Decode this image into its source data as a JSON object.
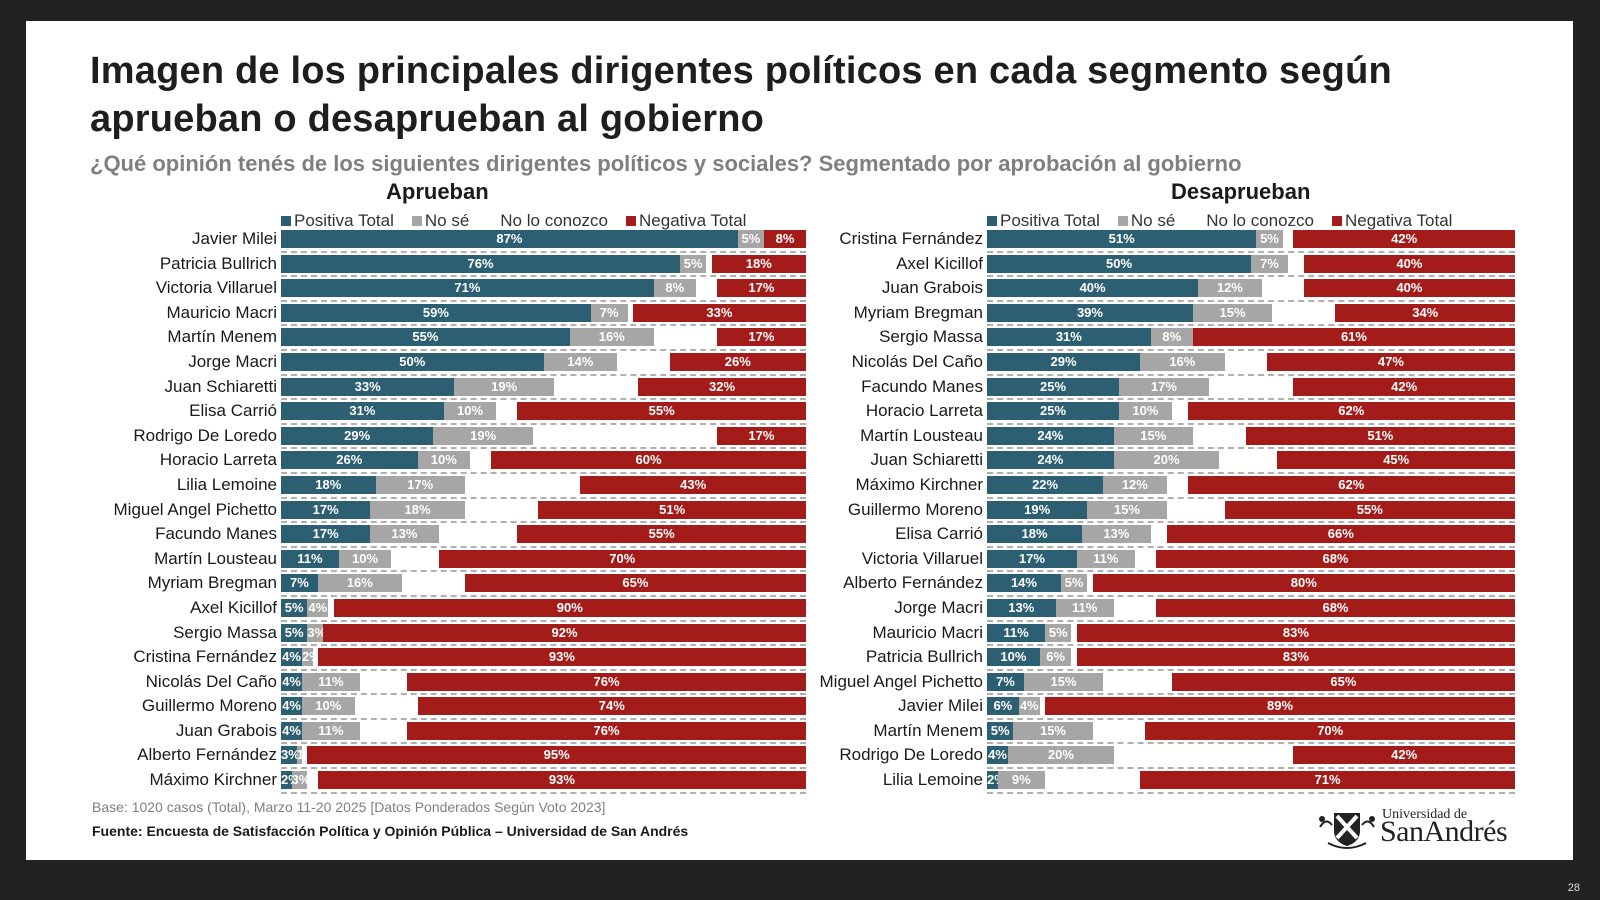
{
  "title": "Imagen de los principales dirigentes políticos en cada segmento según aprueban o desaprueban al gobierno",
  "subtitle": "¿Qué opinión tenés de los siguientes dirigentes políticos y sociales? Segmentado por aprobación al gobierno",
  "colors": {
    "positiva": "#2d5f73",
    "no_se": "#a6a6a6",
    "no_lo_conozco": "#ffffff",
    "negativa": "#a31c1a"
  },
  "legend": [
    "Positiva Total",
    "No sé",
    "No lo conozco",
    "Negativa Total"
  ],
  "footer": {
    "base": "Base: 1020 casos (Total), Marzo 11-20 2025 [Datos Ponderados Según Voto 2023]",
    "source": "Fuente: Encuesta de Satisfacción Política y Opinión Pública – Universidad de San Andrés"
  },
  "logo": {
    "line1": "Universidad de",
    "line2": "SanAndrés",
    "icon": "university-crest-icon"
  },
  "page_number": "28",
  "chart_data": [
    {
      "type": "bar",
      "orientation": "horizontal-stacked",
      "title": "Aprueban",
      "xlabel": "",
      "ylabel": "",
      "xlim": [
        0,
        100
      ],
      "legend_position": "top",
      "categories": [
        "Javier Milei",
        "Patricia Bullrich",
        "Victoria Villaruel",
        "Mauricio Macri",
        "Martín Menem",
        "Jorge Macri",
        "Juan Schiaretti",
        "Elisa Carrió",
        "Rodrigo De Loredo",
        "Horacio Larreta",
        "Lilia Lemoine",
        "Miguel Angel Pichetto",
        "Facundo Manes",
        "Martín Lousteau",
        "Myriam Bregman",
        "Axel Kicillof",
        "Sergio Massa",
        "Cristina Fernández",
        "Nicolás Del Caño",
        "Guillermo Moreno",
        "Juan Grabois",
        "Alberto Fernández",
        "Máximo Kirchner"
      ],
      "series": [
        {
          "name": "Positiva Total",
          "values": [
            87,
            76,
            71,
            59,
            55,
            50,
            33,
            31,
            29,
            26,
            18,
            17,
            17,
            11,
            7,
            5,
            5,
            4,
            4,
            4,
            4,
            3,
            2
          ]
        },
        {
          "name": "No sé",
          "values": [
            5,
            5,
            8,
            7,
            16,
            14,
            19,
            10,
            19,
            10,
            17,
            18,
            13,
            10,
            16,
            4,
            3,
            2,
            11,
            10,
            11,
            1,
            3
          ]
        },
        {
          "name": "No lo conozco",
          "values": [
            0,
            1,
            4,
            1,
            12,
            10,
            16,
            4,
            35,
            4,
            22,
            14,
            15,
            9,
            12,
            1,
            0,
            1,
            9,
            12,
            9,
            1,
            2
          ]
        },
        {
          "name": "Negativa Total",
          "values": [
            8,
            18,
            17,
            33,
            17,
            26,
            32,
            55,
            17,
            60,
            43,
            51,
            55,
            70,
            65,
            90,
            92,
            93,
            76,
            74,
            76,
            95,
            93
          ]
        }
      ]
    },
    {
      "type": "bar",
      "orientation": "horizontal-stacked",
      "title": "Desaprueban",
      "xlabel": "",
      "ylabel": "",
      "xlim": [
        0,
        100
      ],
      "legend_position": "top",
      "categories": [
        "Cristina Fernández",
        "Axel Kicillof",
        "Juan Grabois",
        "Myriam Bregman",
        "Sergio Massa",
        "Nicolás Del Caño",
        "Facundo Manes",
        "Horacio Larreta",
        "Martín Lousteau",
        "Juan Schiaretti",
        "Máximo Kirchner",
        "Guillermo Moreno",
        "Elisa Carrió",
        "Victoria Villaruel",
        "Alberto Fernández",
        "Jorge Macri",
        "Mauricio Macri",
        "Patricia Bullrich",
        "Miguel Angel Pichetto",
        "Javier Milei",
        "Martín Menem",
        "Rodrigo De Loredo",
        "Lilia Lemoine"
      ],
      "series": [
        {
          "name": "Positiva Total",
          "values": [
            51,
            50,
            40,
            39,
            31,
            29,
            25,
            25,
            24,
            24,
            22,
            19,
            18,
            17,
            14,
            13,
            11,
            10,
            7,
            6,
            5,
            4,
            2
          ]
        },
        {
          "name": "No sé",
          "values": [
            5,
            7,
            12,
            15,
            8,
            16,
            17,
            10,
            15,
            20,
            12,
            15,
            13,
            11,
            5,
            11,
            5,
            6,
            15,
            4,
            15,
            20,
            9
          ]
        },
        {
          "name": "No lo conozco",
          "values": [
            2,
            3,
            8,
            12,
            0,
            8,
            16,
            3,
            10,
            11,
            4,
            11,
            3,
            4,
            1,
            8,
            1,
            1,
            13,
            1,
            10,
            34,
            18
          ]
        },
        {
          "name": "Negativa Total",
          "values": [
            42,
            40,
            40,
            34,
            61,
            47,
            42,
            62,
            51,
            45,
            62,
            55,
            66,
            68,
            80,
            68,
            83,
            83,
            65,
            89,
            70,
            42,
            71
          ]
        }
      ]
    }
  ]
}
